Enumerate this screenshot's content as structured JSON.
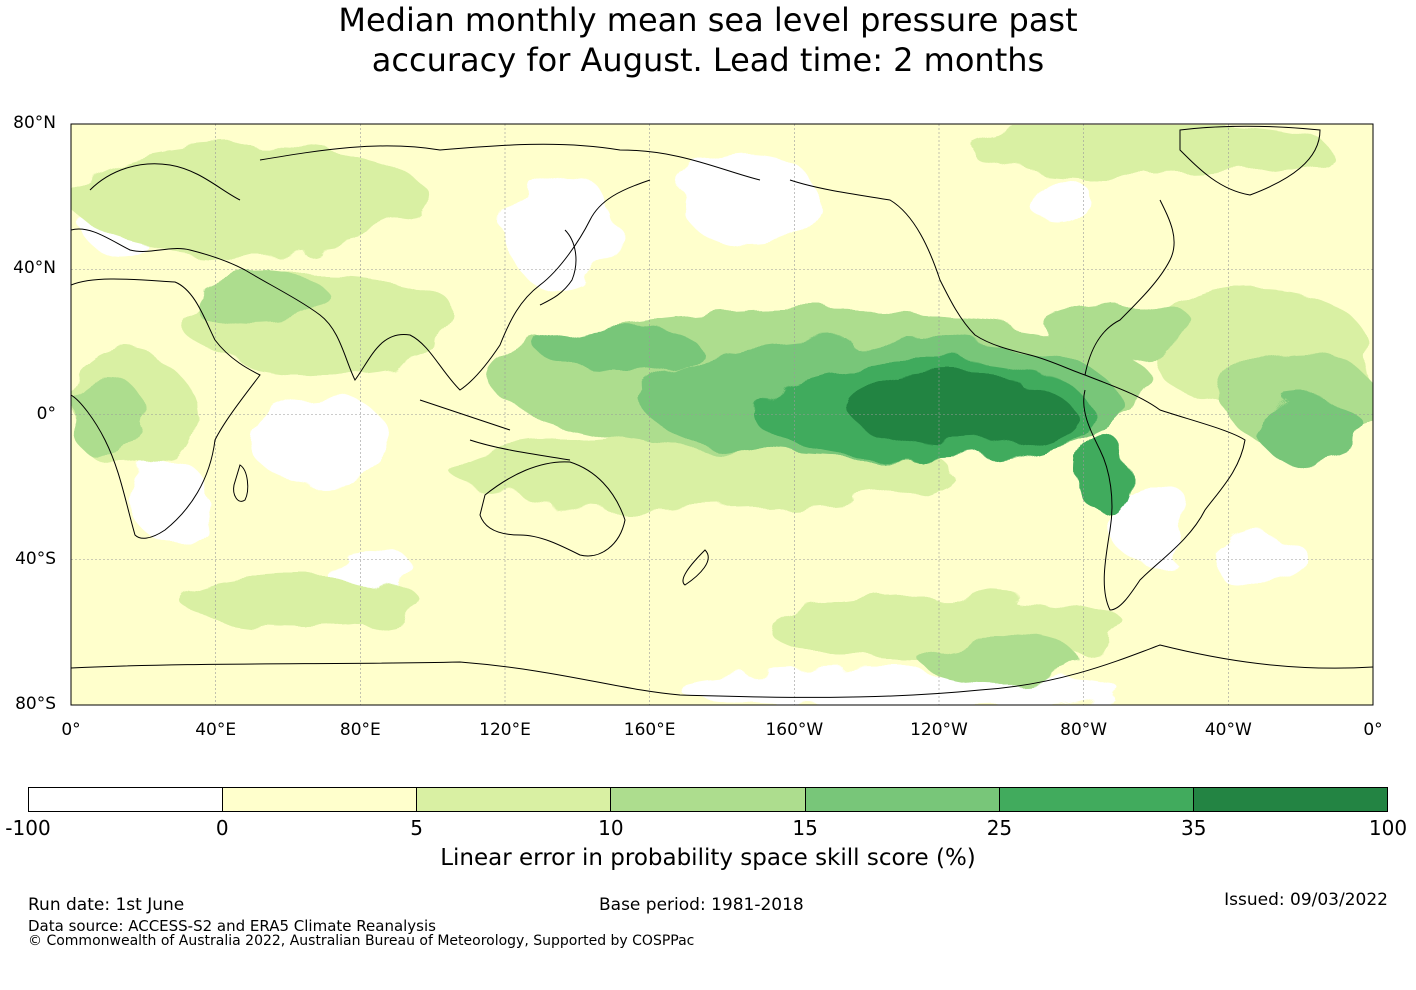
{
  "title": {
    "line1": "Median monthly mean sea level pressure past",
    "line2": "accuracy for August. Lead time: 2 months"
  },
  "map": {
    "lat_labels": [
      "80°N",
      "40°N",
      "0°",
      "40°S",
      "80°S"
    ],
    "lon_labels": [
      "0°",
      "40°E",
      "80°E",
      "120°E",
      "160°E",
      "160°W",
      "120°W",
      "80°W",
      "40°W",
      "0°"
    ],
    "lat_range": [
      -80,
      80
    ],
    "lon_range": [
      0,
      360
    ],
    "gridlines": true,
    "colors": {
      "land_outline": "#000000",
      "gridline": "#9a9a9a"
    }
  },
  "colorbar": {
    "ticks": [
      "-100",
      "0",
      "5",
      "10",
      "15",
      "25",
      "35",
      "100"
    ],
    "colors": [
      "#ffffff",
      "#ffffcc",
      "#d9f0a3",
      "#addd8e",
      "#78c679",
      "#41ab5d",
      "#238443"
    ],
    "label": "Linear error in probability space skill score (%)"
  },
  "footer": {
    "run_date": "Run date: 1st June",
    "base_period": "Base period: 1981-2018",
    "issued": "Issued: 09/03/2022",
    "data_source": "Data source: ACCESS-S2 and ERA5 Climate Reanalysis",
    "copyright": "© Commonwealth of Australia 2022, Australian Bureau of Meteorology, Supported by COSPPac"
  }
}
